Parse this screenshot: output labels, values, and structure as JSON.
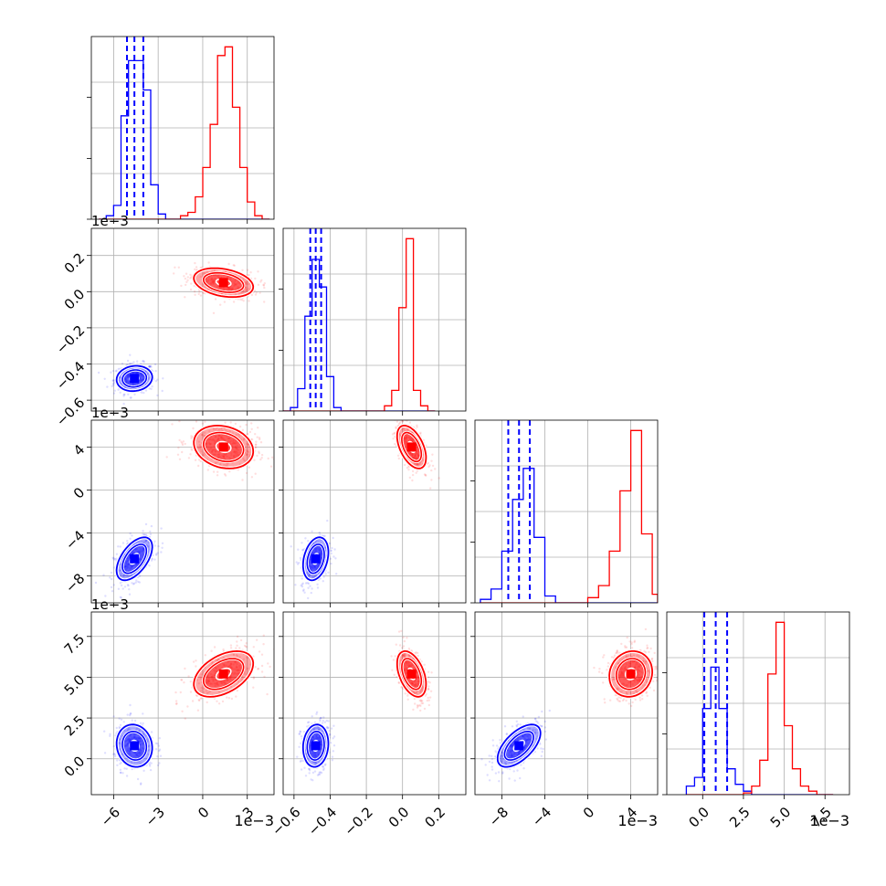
{
  "chart_data": {
    "type": "corner",
    "grid": true,
    "colors": {
      "series_a": "#0000ff",
      "series_b": "#ff0000"
    },
    "series": [
      {
        "color": "#0000ff"
      },
      {
        "color": "#ff0000"
      }
    ],
    "offsets": [
      "",
      "1e−3",
      "1e−3",
      "1e−3"
    ],
    "bottom_exponents": [
      "1e−3",
      "",
      "1e−3",
      "1e−3"
    ],
    "parameters": [
      {
        "range": [
          -7.5,
          4.8
        ],
        "ticks": [
          -6,
          -3,
          0,
          3
        ],
        "tick_labels": [
          "−6",
          "−3",
          "0",
          "3"
        ],
        "a": {
          "mean": -4.6,
          "sd": 0.6
        },
        "b": {
          "mean": 1.4,
          "sd": 1.0
        },
        "a_quantiles": [
          -5.1,
          -4.6,
          -4.0
        ],
        "hist_edges": [
          -7.0,
          -6.5,
          -6.0,
          -5.5,
          -5.0,
          -4.5,
          -4.0,
          -3.5,
          -3.0,
          -2.5,
          -2.0,
          -1.5,
          -1.0,
          -0.5,
          0.0,
          0.5,
          1.0,
          1.5,
          2.0,
          2.5,
          3.0,
          3.5,
          4.0,
          4.5
        ],
        "hist_a": [
          0,
          0.02,
          0.08,
          0.6,
          0.92,
          0.92,
          0.75,
          0.2,
          0.03,
          0,
          0,
          0,
          0,
          0,
          0,
          0,
          0,
          0,
          0,
          0,
          0,
          0,
          0
        ],
        "hist_b": [
          0,
          0,
          0,
          0,
          0,
          0,
          0,
          0,
          0,
          0,
          0,
          0.02,
          0.04,
          0.13,
          0.3,
          0.55,
          0.95,
          1.0,
          0.65,
          0.3,
          0.1,
          0.02,
          0
        ]
      },
      {
        "range": [
          -0.66,
          0.35
        ],
        "ticks": [
          -0.6,
          -0.4,
          -0.2,
          0.0,
          0.2
        ],
        "tick_labels": [
          "−0.6",
          "−0.4",
          "−0.2",
          "0.0",
          "0.2"
        ],
        "a": {
          "mean": -0.48,
          "sd": 0.035
        },
        "b": {
          "mean": 0.05,
          "sd": 0.04
        },
        "a_quantiles": [
          -0.51,
          -0.48,
          -0.45
        ],
        "hist_edges": [
          -0.66,
          -0.62,
          -0.58,
          -0.54,
          -0.5,
          -0.46,
          -0.42,
          -0.38,
          -0.34,
          -0.3,
          -0.26,
          -0.22,
          -0.18,
          -0.14,
          -0.1,
          -0.06,
          -0.02,
          0.02,
          0.06,
          0.1,
          0.14,
          0.18
        ],
        "hist_a": [
          0,
          0.02,
          0.13,
          0.55,
          0.88,
          0.72,
          0.2,
          0.02,
          0,
          0,
          0,
          0,
          0,
          0,
          0,
          0,
          0,
          0,
          0,
          0,
          0
        ],
        "hist_b": [
          0,
          0,
          0,
          0,
          0,
          0,
          0,
          0,
          0,
          0,
          0,
          0,
          0,
          0,
          0.03,
          0.12,
          0.6,
          1.0,
          0.12,
          0.03,
          0
        ]
      },
      {
        "range": [
          -10.5,
          6.5
        ],
        "ticks": [
          -8,
          -4,
          0,
          4
        ],
        "tick_labels": [
          "−8",
          "−4",
          "0",
          "4"
        ],
        "a": {
          "mean": -6.4,
          "sd": 1.0
        },
        "b": {
          "mean": 4.0,
          "sd": 1.0
        },
        "a_quantiles": [
          -7.4,
          -6.4,
          -5.4
        ],
        "hist_edges": [
          -10.0,
          -9.0,
          -8.0,
          -7.0,
          -6.0,
          -5.0,
          -4.0,
          -3.0,
          -2.0,
          -1.0,
          0.0,
          1.0,
          2.0,
          3.0,
          4.0,
          5.0,
          6.0,
          6.5
        ],
        "hist_a": [
          0.02,
          0.08,
          0.3,
          0.6,
          0.78,
          0.38,
          0.04,
          0,
          0,
          0,
          0,
          0,
          0,
          0,
          0,
          0,
          0
        ],
        "hist_b": [
          0,
          0,
          0,
          0,
          0,
          0,
          0,
          0,
          0,
          0,
          0.03,
          0.1,
          0.3,
          0.65,
          1.0,
          0.4,
          0.05
        ]
      },
      {
        "range": [
          -2.2,
          9.0
        ],
        "ticks": [
          0.0,
          2.5,
          5.0,
          7.5
        ],
        "tick_labels": [
          "0.0",
          "2.5",
          "5.0",
          "7.5"
        ],
        "a": {
          "mean": 0.8,
          "sd": 0.65
        },
        "b": {
          "mean": 5.2,
          "sd": 0.7
        },
        "a_quantiles": [
          0.1,
          0.8,
          1.5
        ],
        "hist_edges": [
          -1.0,
          -0.5,
          0.0,
          0.5,
          1.0,
          1.5,
          2.0,
          2.5,
          3.0,
          3.5,
          4.0,
          4.5,
          5.0,
          5.5,
          6.0,
          6.5,
          7.0,
          7.5,
          8.0
        ],
        "hist_a": [
          0.05,
          0.1,
          0.5,
          0.74,
          0.5,
          0.15,
          0.06,
          0.02,
          0,
          0,
          0,
          0,
          0,
          0,
          0,
          0,
          0,
          0
        ],
        "hist_b": [
          0,
          0,
          0,
          0,
          0,
          0,
          0,
          0.01,
          0.05,
          0.2,
          0.7,
          1.0,
          0.4,
          0.15,
          0.05,
          0.02,
          0,
          0
        ]
      }
    ],
    "correlations": [
      {
        "row": 1,
        "col": 0,
        "a_rho": 0.1,
        "b_rho": -0.3
      },
      {
        "row": 2,
        "col": 0,
        "a_rho": 0.55,
        "b_rho": -0.2
      },
      {
        "row": 2,
        "col": 1,
        "a_rho": 0.3,
        "b_rho": -0.5
      },
      {
        "row": 3,
        "col": 0,
        "a_rho": -0.1,
        "b_rho": 0.45
      },
      {
        "row": 3,
        "col": 1,
        "a_rho": 0.1,
        "b_rho": -0.45
      },
      {
        "row": 3,
        "col": 2,
        "a_rho": 0.6,
        "b_rho": 0.1
      }
    ]
  }
}
